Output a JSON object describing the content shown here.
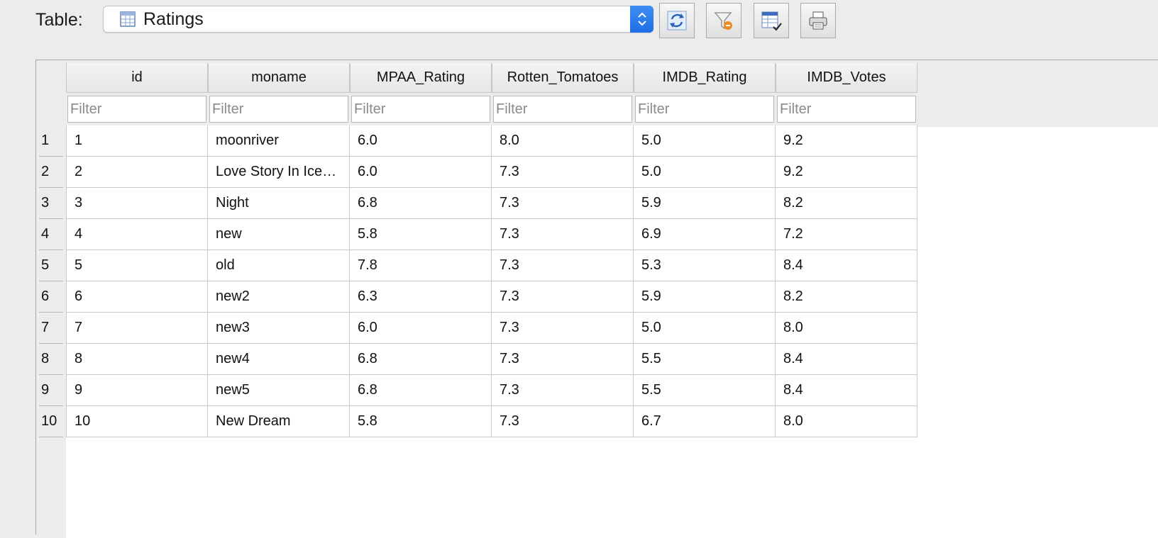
{
  "toolbar": {
    "table_label": "Table:",
    "table_select_value": "Ratings",
    "buttons": [
      {
        "name": "refresh-button",
        "icon": "refresh-icon"
      },
      {
        "name": "clear-filters-button",
        "icon": "clear-filter-icon"
      },
      {
        "name": "save-table-button",
        "icon": "save-table-icon"
      },
      {
        "name": "print-button",
        "icon": "print-icon"
      }
    ]
  },
  "grid": {
    "columns": [
      "id",
      "moname",
      "MPAA_Rating",
      "Rotten_Tomatoes",
      "IMDB_Rating",
      "IMDB_Votes"
    ],
    "filter_placeholder": "Filter",
    "rows": [
      {
        "num": "1",
        "cells": [
          "1",
          "moonriver",
          "6.0",
          "8.0",
          "5.0",
          "9.2"
        ]
      },
      {
        "num": "2",
        "cells": [
          "2",
          "Love Story In Ice…",
          "6.0",
          "7.3",
          "5.0",
          "9.2"
        ]
      },
      {
        "num": "3",
        "cells": [
          "3",
          "Night",
          "6.8",
          "7.3",
          "5.9",
          "8.2"
        ]
      },
      {
        "num": "4",
        "cells": [
          "4",
          "new",
          "5.8",
          "7.3",
          "6.9",
          "7.2"
        ]
      },
      {
        "num": "5",
        "cells": [
          "5",
          "old",
          "7.8",
          "7.3",
          "5.3",
          "8.4"
        ]
      },
      {
        "num": "6",
        "cells": [
          "6",
          "new2",
          "6.3",
          "7.3",
          "5.9",
          "8.2"
        ]
      },
      {
        "num": "7",
        "cells": [
          "7",
          "new3",
          "6.0",
          "7.3",
          "5.0",
          "8.0"
        ]
      },
      {
        "num": "8",
        "cells": [
          "8",
          "new4",
          "6.8",
          "7.3",
          "5.5",
          "8.4"
        ]
      },
      {
        "num": "9",
        "cells": [
          "9",
          "new5",
          "6.8",
          "7.3",
          "5.5",
          "8.4"
        ]
      },
      {
        "num": "10",
        "cells": [
          "10",
          "New Dream",
          "5.8",
          "7.3",
          "6.7",
          "8.0"
        ]
      }
    ]
  }
}
